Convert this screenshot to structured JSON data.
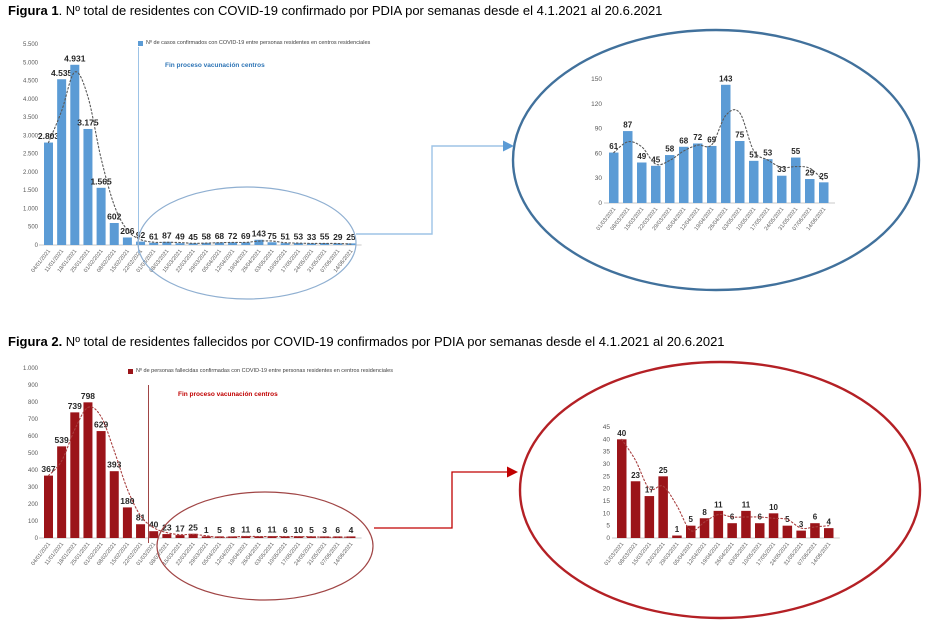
{
  "figure1": {
    "title_bold": "Figura 1",
    "title_rest": ". Nº total de residentes con COVID-19 confirmado por PDIA por semanas desde el 4.1.2021 al 20.6.2021",
    "legend_label": "Nº de casos confirmados con COVID-19 entre personas residentes en centros residenciales",
    "annotation": "Fin proceso vacunación centros",
    "bar_color": "#5B9BD5",
    "trend_color": "#595959",
    "vline_color": "#9DC3E6",
    "annotation_color": "#2E75B6",
    "small_ellipse_color": "#8FAFD1",
    "ellipse_color": "#41719C",
    "arrow_color": "#9DC3E6",
    "arrowhead_color": "#5B9BD5"
  },
  "figure2": {
    "title_bold": "Figura 2.",
    "title_rest": " Nº total de residentes fallecidos por COVID-19 confirmados por PDIA por semanas desde el 4.1.2021 al 20.6.2021",
    "legend_label": "Nº de personas fallecidas confirmadas con COVID-19 entre personas residentes en centros residenciales",
    "annotation": "Fin proceso vacunación centros",
    "bar_color": "#9B1419",
    "trend_color": "#A84040",
    "vline_color": "#A04545",
    "annotation_color": "#C00000",
    "small_ellipse_color": "#A04545",
    "ellipse_color": "#B42025",
    "arrow_color": "#C00000",
    "arrowhead_color": "#C00000"
  },
  "chart_data": [
    {
      "id": "fig1_main",
      "type": "bar",
      "title": "Figura 1. Nº total de residentes con COVID-19 confirmado por PDIA por semanas desde el 4.1.2021 al 20.6.2021",
      "legend": [
        "Nº de casos confirmados con COVID-19 entre personas residentes en centros residenciales"
      ],
      "legend_position": "top",
      "grid": false,
      "xlabel": "",
      "ylabel": "",
      "categories": [
        "04/01/2021",
        "11/01/2021",
        "18/01/2021",
        "25/01/2021",
        "01/02/2021",
        "08/02/2021",
        "15/02/2021",
        "22/02/2021",
        "01/03/2021",
        "08/03/2021",
        "15/03/2021",
        "22/03/2021",
        "29/03/2021",
        "05/04/2021",
        "12/04/2021",
        "19/04/2021",
        "26/04/2021",
        "03/05/2021",
        "10/05/2021",
        "17/05/2021",
        "24/05/2021",
        "31/05/2021",
        "07/06/2021",
        "14/06/2021"
      ],
      "values": [
        2803,
        4535,
        4931,
        3175,
        1565,
        602,
        206,
        92,
        61,
        87,
        49,
        45,
        58,
        68,
        72,
        69,
        143,
        75,
        51,
        53,
        33,
        55,
        29,
        25
      ],
      "data_labels": [
        "2.803",
        "4.535",
        "4.931",
        "3.175",
        "1.565",
        "602",
        "206",
        "92",
        "61",
        "87",
        "49",
        "45",
        "58",
        "68",
        "72",
        "69",
        "143",
        "75",
        "51",
        "53",
        "33",
        "55",
        "29",
        "25"
      ],
      "ylim": [
        0,
        5500
      ],
      "yticks": [
        "0",
        "500",
        "1.000",
        "1.500",
        "2.000",
        "2.500",
        "3.000",
        "3.500",
        "4.000",
        "4.500",
        "5.000",
        "5.500"
      ],
      "trendline": "dotted moving average (2 per.)",
      "annotation": {
        "text": "Fin proceso vacunación centros",
        "at_category": "01/03/2021"
      }
    },
    {
      "id": "fig1_inset",
      "type": "bar",
      "title": "",
      "legend": [],
      "legend_position": "none",
      "grid": false,
      "xlabel": "",
      "ylabel": "",
      "categories": [
        "01/03/2021",
        "08/03/2021",
        "15/03/2021",
        "22/03/2021",
        "29/03/2021",
        "05/04/2021",
        "12/04/2021",
        "19/04/2021",
        "26/04/2021",
        "03/05/2021",
        "10/05/2021",
        "17/05/2021",
        "24/05/2021",
        "31/05/2021",
        "07/06/2021",
        "14/06/2021"
      ],
      "values": [
        61,
        87,
        49,
        45,
        58,
        68,
        72,
        69,
        143,
        75,
        51,
        53,
        33,
        55,
        29,
        25
      ],
      "data_labels": [
        "61",
        "87",
        "49",
        "45",
        "58",
        "68",
        "72",
        "69",
        "143",
        "75",
        "51",
        "53",
        "33",
        "55",
        "29",
        "25"
      ],
      "ylim": [
        0,
        150
      ],
      "yticks": [
        "0",
        "30",
        "60",
        "90",
        "120",
        "150"
      ],
      "trendline": "dotted moving average (2 per.)"
    },
    {
      "id": "fig2_main",
      "type": "bar",
      "title": "Figura 2. Nº total de residentes fallecidos por COVID-19 confirmados por PDIA por semanas desde el 4.1.2021 al 20.6.2021",
      "legend": [
        "Nº de personas fallecidas confirmadas con COVID-19 entre personas residentes en centros residenciales"
      ],
      "legend_position": "top",
      "grid": false,
      "xlabel": "",
      "ylabel": "",
      "categories": [
        "04/01/2021",
        "11/01/2021",
        "18/01/2021",
        "25/01/2021",
        "01/02/2021",
        "08/02/2021",
        "15/02/2021",
        "22/02/2021",
        "01/03/2021",
        "08/03/2021",
        "15/03/2021",
        "22/03/2021",
        "29/03/2021",
        "05/04/2021",
        "12/04/2021",
        "19/04/2021",
        "26/04/2021",
        "03/05/2021",
        "10/05/2021",
        "17/05/2021",
        "24/05/2021",
        "31/05/2021",
        "07/06/2021",
        "14/06/2021"
      ],
      "values": [
        367,
        539,
        739,
        798,
        629,
        393,
        180,
        81,
        40,
        23,
        17,
        25,
        1,
        5,
        8,
        11,
        6,
        11,
        6,
        10,
        5,
        3,
        6,
        4
      ],
      "data_labels": [
        "367",
        "539",
        "739",
        "798",
        "629",
        "393",
        "180",
        "81",
        "40",
        "23",
        "17",
        "25",
        "1",
        "5",
        "8",
        "11",
        "6",
        "11",
        "6",
        "10",
        "5",
        "3",
        "6",
        "4"
      ],
      "ylim": [
        0,
        1000
      ],
      "yticks": [
        "0",
        "100",
        "200",
        "300",
        "400",
        "500",
        "600",
        "700",
        "800",
        "900",
        "1.000"
      ],
      "trendline": "dotted moving average (2 per.)",
      "annotation": {
        "text": "Fin proceso vacunación centros",
        "at_category": "01/03/2021"
      }
    },
    {
      "id": "fig2_inset",
      "type": "bar",
      "title": "",
      "legend": [],
      "legend_position": "none",
      "grid": false,
      "xlabel": "",
      "ylabel": "",
      "categories": [
        "01/03/2021",
        "08/03/2021",
        "15/03/2021",
        "22/03/2021",
        "29/03/2021",
        "05/04/2021",
        "12/04/2021",
        "19/04/2021",
        "26/04/2021",
        "03/05/2021",
        "10/05/2021",
        "17/05/2021",
        "24/05/2021",
        "31/05/2021",
        "07/06/2021",
        "14/06/2021"
      ],
      "values": [
        40,
        23,
        17,
        25,
        1,
        5,
        8,
        11,
        6,
        11,
        6,
        10,
        5,
        3,
        6,
        4
      ],
      "data_labels": [
        "40",
        "23",
        "17",
        "25",
        "1",
        "5",
        "8",
        "11",
        "6",
        "11",
        "6",
        "10",
        "5",
        "3",
        "6",
        "4"
      ],
      "ylim": [
        0,
        45
      ],
      "yticks": [
        "0",
        "5",
        "10",
        "15",
        "20",
        "25",
        "30",
        "35",
        "40",
        "45"
      ],
      "trendline": "dotted moving average (2 per.)"
    }
  ]
}
